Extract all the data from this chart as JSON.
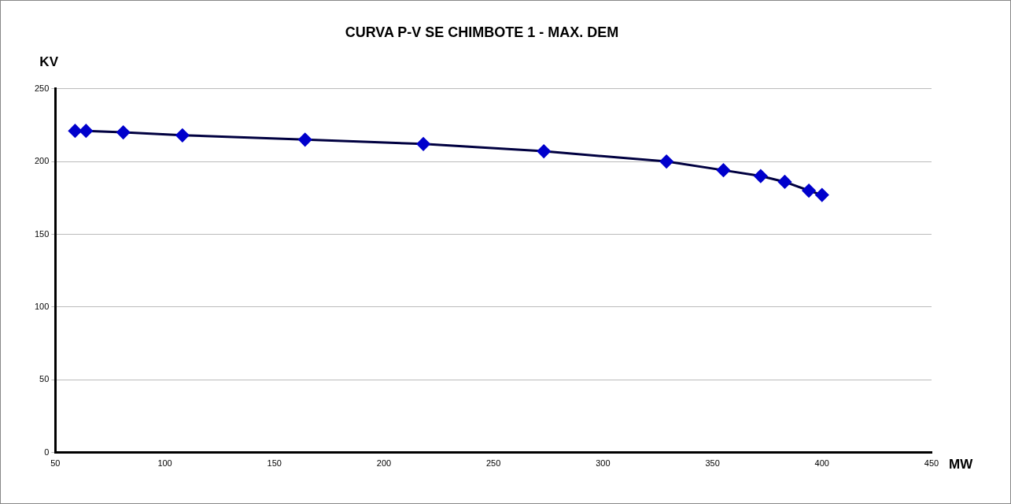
{
  "chart_data": {
    "type": "line",
    "title": "CURVA P-V SE CHIMBOTE 1 - MAX. DEM",
    "xlabel": "MW",
    "ylabel": "KV",
    "x": [
      59,
      64,
      81,
      108,
      164,
      218,
      273,
      329,
      355,
      372,
      383,
      394,
      400
    ],
    "series": [
      {
        "color": "#0000cc",
        "values": [
          221,
          221,
          220,
          218,
          215,
          212,
          207,
          200,
          194,
          190,
          186,
          180,
          177
        ]
      }
    ],
    "xlim": [
      50,
      450
    ],
    "xticks": [
      50,
      100,
      150,
      200,
      250,
      300,
      350,
      400,
      450
    ],
    "ylim": [
      0,
      250
    ],
    "yticks": [
      0,
      50,
      100,
      150,
      200,
      250
    ],
    "grid": "y",
    "legend": false,
    "marker": "diamond",
    "line_style": "solid"
  }
}
